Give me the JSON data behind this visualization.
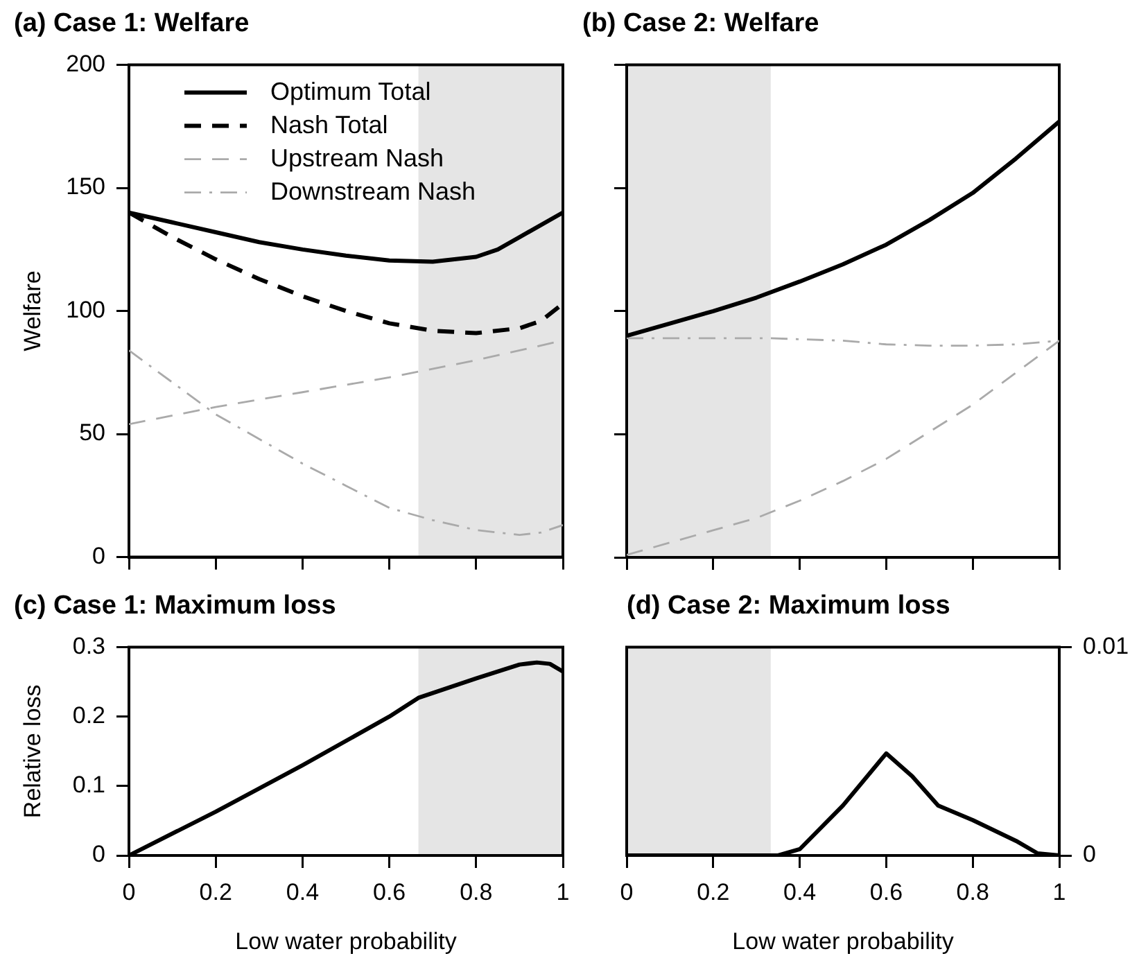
{
  "chart_data": [
    {
      "type": "line",
      "title": "(a) Case 1: Welfare",
      "ylabel": "Welfare",
      "xlim": [
        0,
        1
      ],
      "xticks": [
        {
          "value": 0,
          "label": null
        },
        {
          "value": 0.2,
          "label": null
        },
        {
          "value": 0.4,
          "label": null
        },
        {
          "value": 0.6,
          "label": null
        },
        {
          "value": 0.8,
          "label": null
        },
        {
          "value": 1,
          "label": null
        }
      ],
      "ylim": [
        0,
        200
      ],
      "yticks": [
        0,
        50,
        100,
        150,
        200
      ],
      "tick_labels": "y",
      "grid": false,
      "legend": "top",
      "marker": "none",
      "bands": [
        {
          "axis": "x",
          "from": 0.667,
          "to": 1,
          "color": "#e5e5e5"
        }
      ],
      "series": [
        {
          "name": "Optimum Total",
          "color": "#000000",
          "line_style": "solid",
          "x": [
            0,
            0.1,
            0.2,
            0.3,
            0.4,
            0.5,
            0.6,
            0.7,
            0.8,
            0.85,
            0.9,
            1
          ],
          "values": [
            140,
            136,
            132,
            128,
            125,
            122.5,
            120.5,
            120,
            122,
            125,
            130,
            140
          ]
        },
        {
          "name": "Nash Total",
          "color": "#000000",
          "line_style": "dashed",
          "x": [
            0,
            0.1,
            0.2,
            0.3,
            0.4,
            0.5,
            0.6,
            0.7,
            0.8,
            0.9,
            0.95,
            1
          ],
          "values": [
            140,
            130,
            121,
            113,
            106,
            100,
            95,
            92,
            91,
            93,
            96,
            103
          ]
        },
        {
          "name": "Upstream Nash",
          "color": "#aaaaaa",
          "line_style": "dashed",
          "x": [
            0,
            0.2,
            0.4,
            0.6,
            0.8,
            1
          ],
          "values": [
            54,
            61,
            67,
            73,
            80,
            88
          ]
        },
        {
          "name": "Downstream Nash",
          "color": "#aaaaaa",
          "line_style": "dashdot",
          "x": [
            0,
            0.1,
            0.2,
            0.3,
            0.4,
            0.5,
            0.6,
            0.7,
            0.8,
            0.9,
            0.95,
            1
          ],
          "values": [
            84,
            71,
            58,
            48,
            38,
            29,
            20,
            15,
            11,
            9,
            10,
            13
          ]
        }
      ]
    },
    {
      "type": "line",
      "title": "(b) Case 2: Welfare",
      "xlim": [
        0,
        1
      ],
      "xticks": [
        {
          "value": 0,
          "label": null
        },
        {
          "value": 0.2,
          "label": null
        },
        {
          "value": 0.4,
          "label": null
        },
        {
          "value": 0.6,
          "label": null
        },
        {
          "value": 0.8,
          "label": null
        },
        {
          "value": 1,
          "label": null
        }
      ],
      "ylim": [
        0,
        200
      ],
      "yticks": [
        {
          "value": 0,
          "label": null
        },
        {
          "value": 50,
          "label": null
        },
        {
          "value": 100,
          "label": null
        },
        {
          "value": 150,
          "label": null
        },
        {
          "value": 200,
          "label": null
        }
      ],
      "tick_labels": false,
      "grid": false,
      "marker": "none",
      "bands": [
        {
          "axis": "x",
          "from": 0,
          "to": 0.333,
          "color": "#e5e5e5"
        }
      ],
      "series": [
        {
          "color": "#000000",
          "line_style": "solid",
          "x": [
            0,
            0.1,
            0.2,
            0.3,
            0.4,
            0.5,
            0.6,
            0.7,
            0.8,
            0.9,
            1
          ],
          "values": [
            90,
            95,
            100,
            105.5,
            112,
            119,
            127,
            137,
            148,
            162,
            177
          ]
        },
        {
          "color": "#aaaaaa",
          "line_style": "dashed",
          "x": [
            0,
            0.1,
            0.2,
            0.3,
            0.4,
            0.5,
            0.6,
            0.7,
            0.8,
            0.9,
            1
          ],
          "values": [
            1,
            6,
            11,
            16,
            23,
            31,
            40,
            51,
            62,
            75,
            88
          ]
        },
        {
          "color": "#aaaaaa",
          "line_style": "dashdot",
          "x": [
            0,
            0.2,
            0.33,
            0.5,
            0.6,
            0.7,
            0.8,
            0.9,
            1
          ],
          "values": [
            89,
            89,
            89,
            88,
            86.5,
            86,
            86,
            86.5,
            88
          ]
        }
      ]
    },
    {
      "type": "line",
      "title": "(c) Case 1: Maximum loss",
      "xlabel": "Low water probability",
      "ylabel": "Relative loss",
      "xlim": [
        0,
        1
      ],
      "xticks": [
        0,
        0.2,
        0.4,
        0.6,
        0.8,
        1
      ],
      "ylim": [
        0,
        0.3
      ],
      "yticks": [
        0,
        0.1,
        0.2,
        0.3
      ],
      "grid": false,
      "marker": "none",
      "bands": [
        {
          "axis": "x",
          "from": 0.667,
          "to": 1,
          "color": "#e5e5e5"
        }
      ],
      "series": [
        {
          "color": "#000000",
          "line_style": "solid",
          "x": [
            0,
            0.2,
            0.4,
            0.6,
            0.667,
            0.8,
            0.9,
            0.94,
            0.97,
            1
          ],
          "values": [
            0,
            0.063,
            0.13,
            0.2,
            0.227,
            0.255,
            0.275,
            0.278,
            0.276,
            0.265
          ]
        }
      ]
    },
    {
      "type": "line",
      "title": "(d) Case 2: Maximum loss",
      "xlabel": "Low water probability",
      "xlim": [
        0,
        1
      ],
      "xticks": [
        0,
        0.2,
        0.4,
        0.6,
        0.8,
        1
      ],
      "y2lim": [
        0,
        0.01
      ],
      "y2ticks": [
        0,
        0.01
      ],
      "grid": false,
      "marker": "none",
      "bands": [
        {
          "axis": "x",
          "from": 0,
          "to": 0.333,
          "color": "#e5e5e5"
        }
      ],
      "series": [
        {
          "color": "#000000",
          "line_style": "solid",
          "axis": "y2",
          "x": [
            0,
            0.2,
            0.35,
            0.4,
            0.5,
            0.6,
            0.66,
            0.72,
            0.8,
            0.9,
            0.95,
            1
          ],
          "values": [
            0,
            0,
            0,
            0.0003,
            0.0024,
            0.0049,
            0.0038,
            0.0024,
            0.0017,
            0.0007,
            0.0001,
            0
          ]
        }
      ]
    }
  ]
}
